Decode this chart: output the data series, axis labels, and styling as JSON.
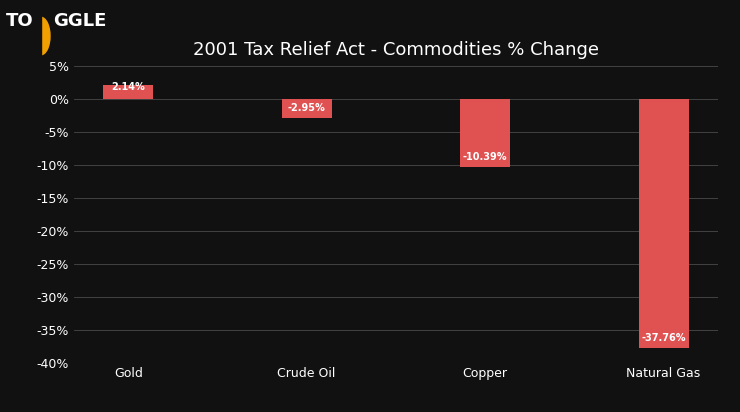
{
  "title": "2001 Tax Relief Act - Commodities % Change",
  "categories": [
    "Gold",
    "Crude Oil",
    "Copper",
    "Natural Gas"
  ],
  "values": [
    2.14,
    -2.95,
    -10.39,
    -37.76
  ],
  "labels": [
    "2.14%",
    "-2.95%",
    "-10.39%",
    "-37.76%"
  ],
  "bar_color": "#e05252",
  "background_color": "#111111",
  "text_color": "#ffffff",
  "grid_color": "#555555",
  "ylim": [
    -40,
    5
  ],
  "yticks": [
    5,
    0,
    -5,
    -10,
    -15,
    -20,
    -25,
    -30,
    -35,
    -40
  ],
  "ytick_labels": [
    "5%",
    "0%",
    "-5%",
    "-10%",
    "-15%",
    "-20%",
    "-25%",
    "-30%",
    "-35%",
    "-40%"
  ],
  "bar_width": 0.28,
  "logo_circle_color": "#f0a000",
  "title_fontsize": 13,
  "axis_label_fontsize": 9,
  "tick_label_fontsize": 9,
  "bar_label_fontsize": 7,
  "logo_fontsize": 13
}
